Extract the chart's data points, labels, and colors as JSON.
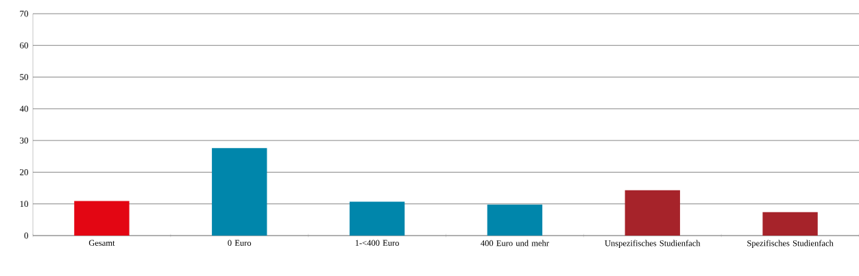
{
  "chart_data": {
    "type": "bar",
    "categories": [
      "Gesamt",
      "0 Euro",
      "1-<400 Euro",
      "400 Euro und mehr",
      "Unspezifisches Studienfach",
      "Spezifisches Studienfach"
    ],
    "values": [
      10.9,
      27.6,
      10.7,
      9.8,
      14.3,
      7.4
    ],
    "colors": [
      "#e30613",
      "#0086ab",
      "#0086ab",
      "#0086ab",
      "#a6232a",
      "#a6232a"
    ],
    "ylim": [
      0,
      70
    ],
    "yticks": [
      0,
      10,
      20,
      30,
      40,
      50,
      60,
      70
    ],
    "grid": "y"
  }
}
